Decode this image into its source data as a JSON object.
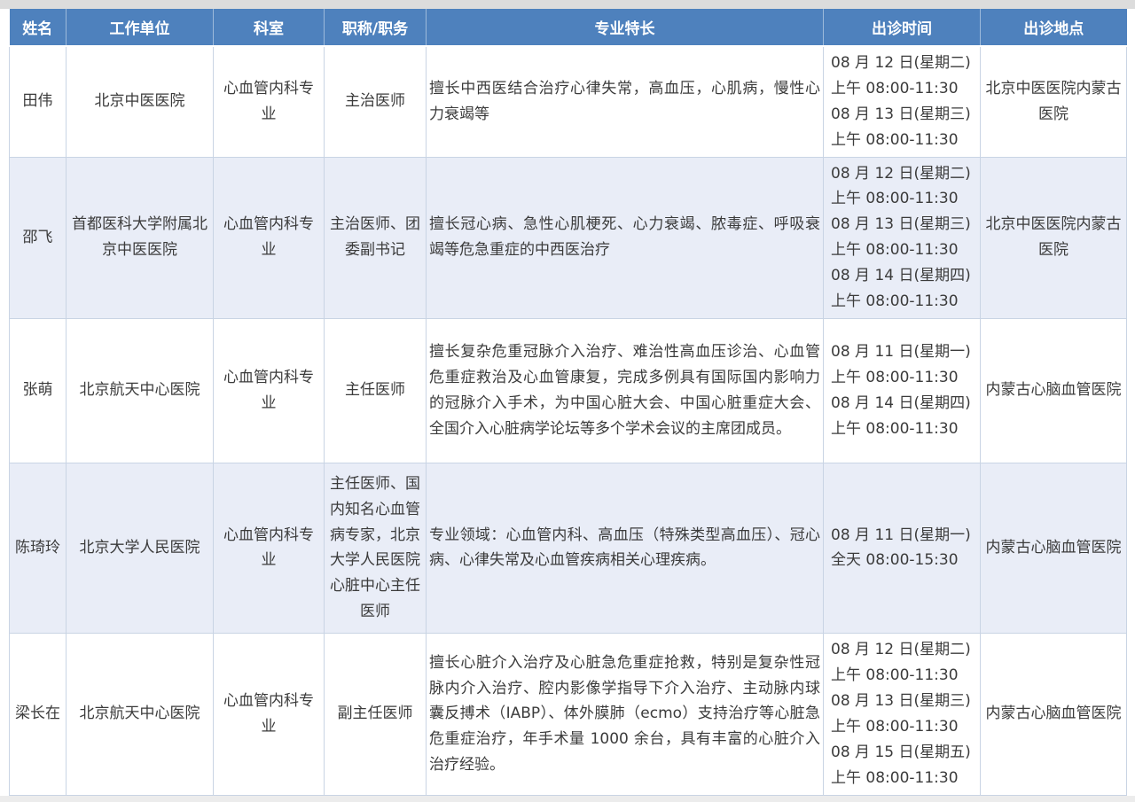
{
  "page": {
    "top_strip_color": "#dcdcdc",
    "bottom_strip_color": "#ececec"
  },
  "table": {
    "header_bg": "#4E81BD",
    "header_text_color": "#ffffff",
    "row_bg": "#ffffff",
    "row_alt_bg": "#E9EDF7",
    "border_color": "#c9d4e4",
    "text_color": "#3b3b3b",
    "columns": [
      {
        "key": "name",
        "label": "姓名"
      },
      {
        "key": "workplace",
        "label": "工作单位"
      },
      {
        "key": "department",
        "label": "科室"
      },
      {
        "key": "title",
        "label": "职称/职务"
      },
      {
        "key": "specialty",
        "label": "专业特长"
      },
      {
        "key": "schedule",
        "label": "出诊时间"
      },
      {
        "key": "location",
        "label": "出诊地点"
      }
    ],
    "rows": [
      {
        "name": "田伟",
        "workplace": "北京中医医院",
        "department": "心血管内科专业",
        "title": "主治医师",
        "specialty": "擅长中西医结合治疗心律失常，高血压，心肌病，慢性心力衰竭等",
        "schedule": [
          "08 月 12 日(星期二)",
          "上午 08:00-11:30",
          "08 月 13 日(星期三)",
          "上午 08:00-11:30"
        ],
        "location": "北京中医医院内蒙古医院"
      },
      {
        "name": "邵飞",
        "workplace": "首都医科大学附属北京中医医院",
        "department": "心血管内科专业",
        "title": "主治医师、团委副书记",
        "specialty": "擅长冠心病、急性心肌梗死、心力衰竭、脓毒症、呼吸衰竭等危急重症的中西医治疗",
        "schedule": [
          "08 月 12 日(星期二)",
          "上午 08:00-11:30",
          "08 月 13 日(星期三)",
          "上午 08:00-11:30",
          "08 月 14 日(星期四)",
          "上午 08:00-11:30"
        ],
        "location": "北京中医医院内蒙古医院"
      },
      {
        "name": "张萌",
        "workplace": "北京航天中心医院",
        "department": "心血管内科专业",
        "title": "主任医师",
        "specialty": "擅长复杂危重冠脉介入治疗、难治性高血压诊治、心血管危重症救治及心血管康复，完成多例具有国际国内影响力的冠脉介入手术，为中国心脏大会、中国心脏重症大会、全国介入心脏病学论坛等多个学术会议的主席团成员。",
        "schedule": [
          "08 月 11 日(星期一)",
          "上午 08:00-11:30",
          "08 月 14 日(星期四)",
          "上午 08:00-11:30"
        ],
        "location": "内蒙古心脑血管医院"
      },
      {
        "name": "陈琦玲",
        "workplace": "北京大学人民医院",
        "department": "心血管内科专业",
        "title": "主任医师、国内知名心血管病专家，北京大学人民医院心脏中心主任医师",
        "specialty": "专业领域：心血管内科、高血压（特殊类型高血压）、冠心病、心律失常及心血管疾病相关心理疾病。",
        "schedule": [
          "08 月 11 日(星期一)",
          "全天 08:00-15:30"
        ],
        "location": "内蒙古心脑血管医院"
      },
      {
        "name": "梁长在",
        "workplace": "北京航天中心医院",
        "department": "心血管内科专业",
        "title": "副主任医师",
        "specialty": "擅长心脏介入治疗及心脏急危重症抢救，特别是复杂性冠脉内介入治疗、腔内影像学指导下介入治疗、主动脉内球囊反搏术（IABP）、体外膜肺（ecmo）支持治疗等心脏急危重症治疗，年手术量 1000 余台，具有丰富的心脏介入治疗经验。",
        "schedule": [
          "08 月 12 日(星期二)",
          "上午 08:00-11:30",
          "08 月 13 日(星期三)",
          "上午 08:00-11:30",
          "08 月 15 日(星期五)",
          "上午 08:00-11:30"
        ],
        "location": "内蒙古心脑血管医院"
      }
    ]
  }
}
